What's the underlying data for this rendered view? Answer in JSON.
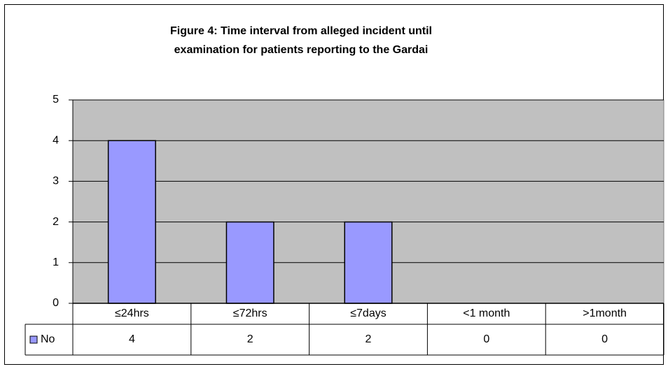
{
  "chart_data": {
    "type": "bar",
    "title": [
      "Figure 4: Time interval from alleged incident until",
      "examination for patients reporting to the Gardai"
    ],
    "categories": [
      "≤24hrs",
      "≤72hrs",
      "≤7days",
      "<1 month",
      ">1month"
    ],
    "series": [
      {
        "name": "No",
        "color": "#9999ff",
        "values": [
          4,
          2,
          2,
          0,
          0
        ]
      }
    ],
    "ylim": [
      0,
      5
    ],
    "yticks": [
      0,
      1,
      2,
      3,
      4,
      5
    ],
    "grid": true,
    "plot_background": "#c0c0c0"
  }
}
